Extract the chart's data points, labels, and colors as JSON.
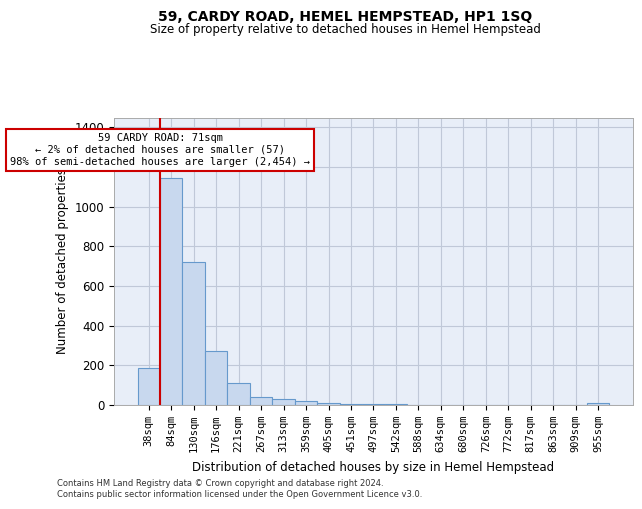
{
  "title": "59, CARDY ROAD, HEMEL HEMPSTEAD, HP1 1SQ",
  "subtitle": "Size of property relative to detached houses in Hemel Hempstead",
  "xlabel": "Distribution of detached houses by size in Hemel Hempstead",
  "ylabel": "Number of detached properties",
  "bin_labels": [
    "38sqm",
    "84sqm",
    "130sqm",
    "176sqm",
    "221sqm",
    "267sqm",
    "313sqm",
    "359sqm",
    "405sqm",
    "451sqm",
    "497sqm",
    "542sqm",
    "588sqm",
    "634sqm",
    "680sqm",
    "726sqm",
    "772sqm",
    "817sqm",
    "863sqm",
    "909sqm",
    "955sqm"
  ],
  "bar_values": [
    185,
    1145,
    720,
    270,
    110,
    40,
    32,
    18,
    10,
    6,
    4,
    3,
    2,
    2,
    2,
    1,
    1,
    1,
    0,
    0,
    12
  ],
  "bar_color": "#c8d8ee",
  "bar_edge_color": "#6699cc",
  "background_color": "#e8eef8",
  "grid_color": "#d0d8e8",
  "vline_color": "#cc0000",
  "annotation_text": "59 CARDY ROAD: 71sqm\n← 2% of detached houses are smaller (57)\n98% of semi-detached houses are larger (2,454) →",
  "annotation_box_color": "#ffffff",
  "annotation_box_edge": "#cc0000",
  "ylim": [
    0,
    1450
  ],
  "yticks": [
    0,
    200,
    400,
    600,
    800,
    1000,
    1200,
    1400
  ],
  "footer_line1": "Contains HM Land Registry data © Crown copyright and database right 2024.",
  "footer_line2": "Contains public sector information licensed under the Open Government Licence v3.0."
}
